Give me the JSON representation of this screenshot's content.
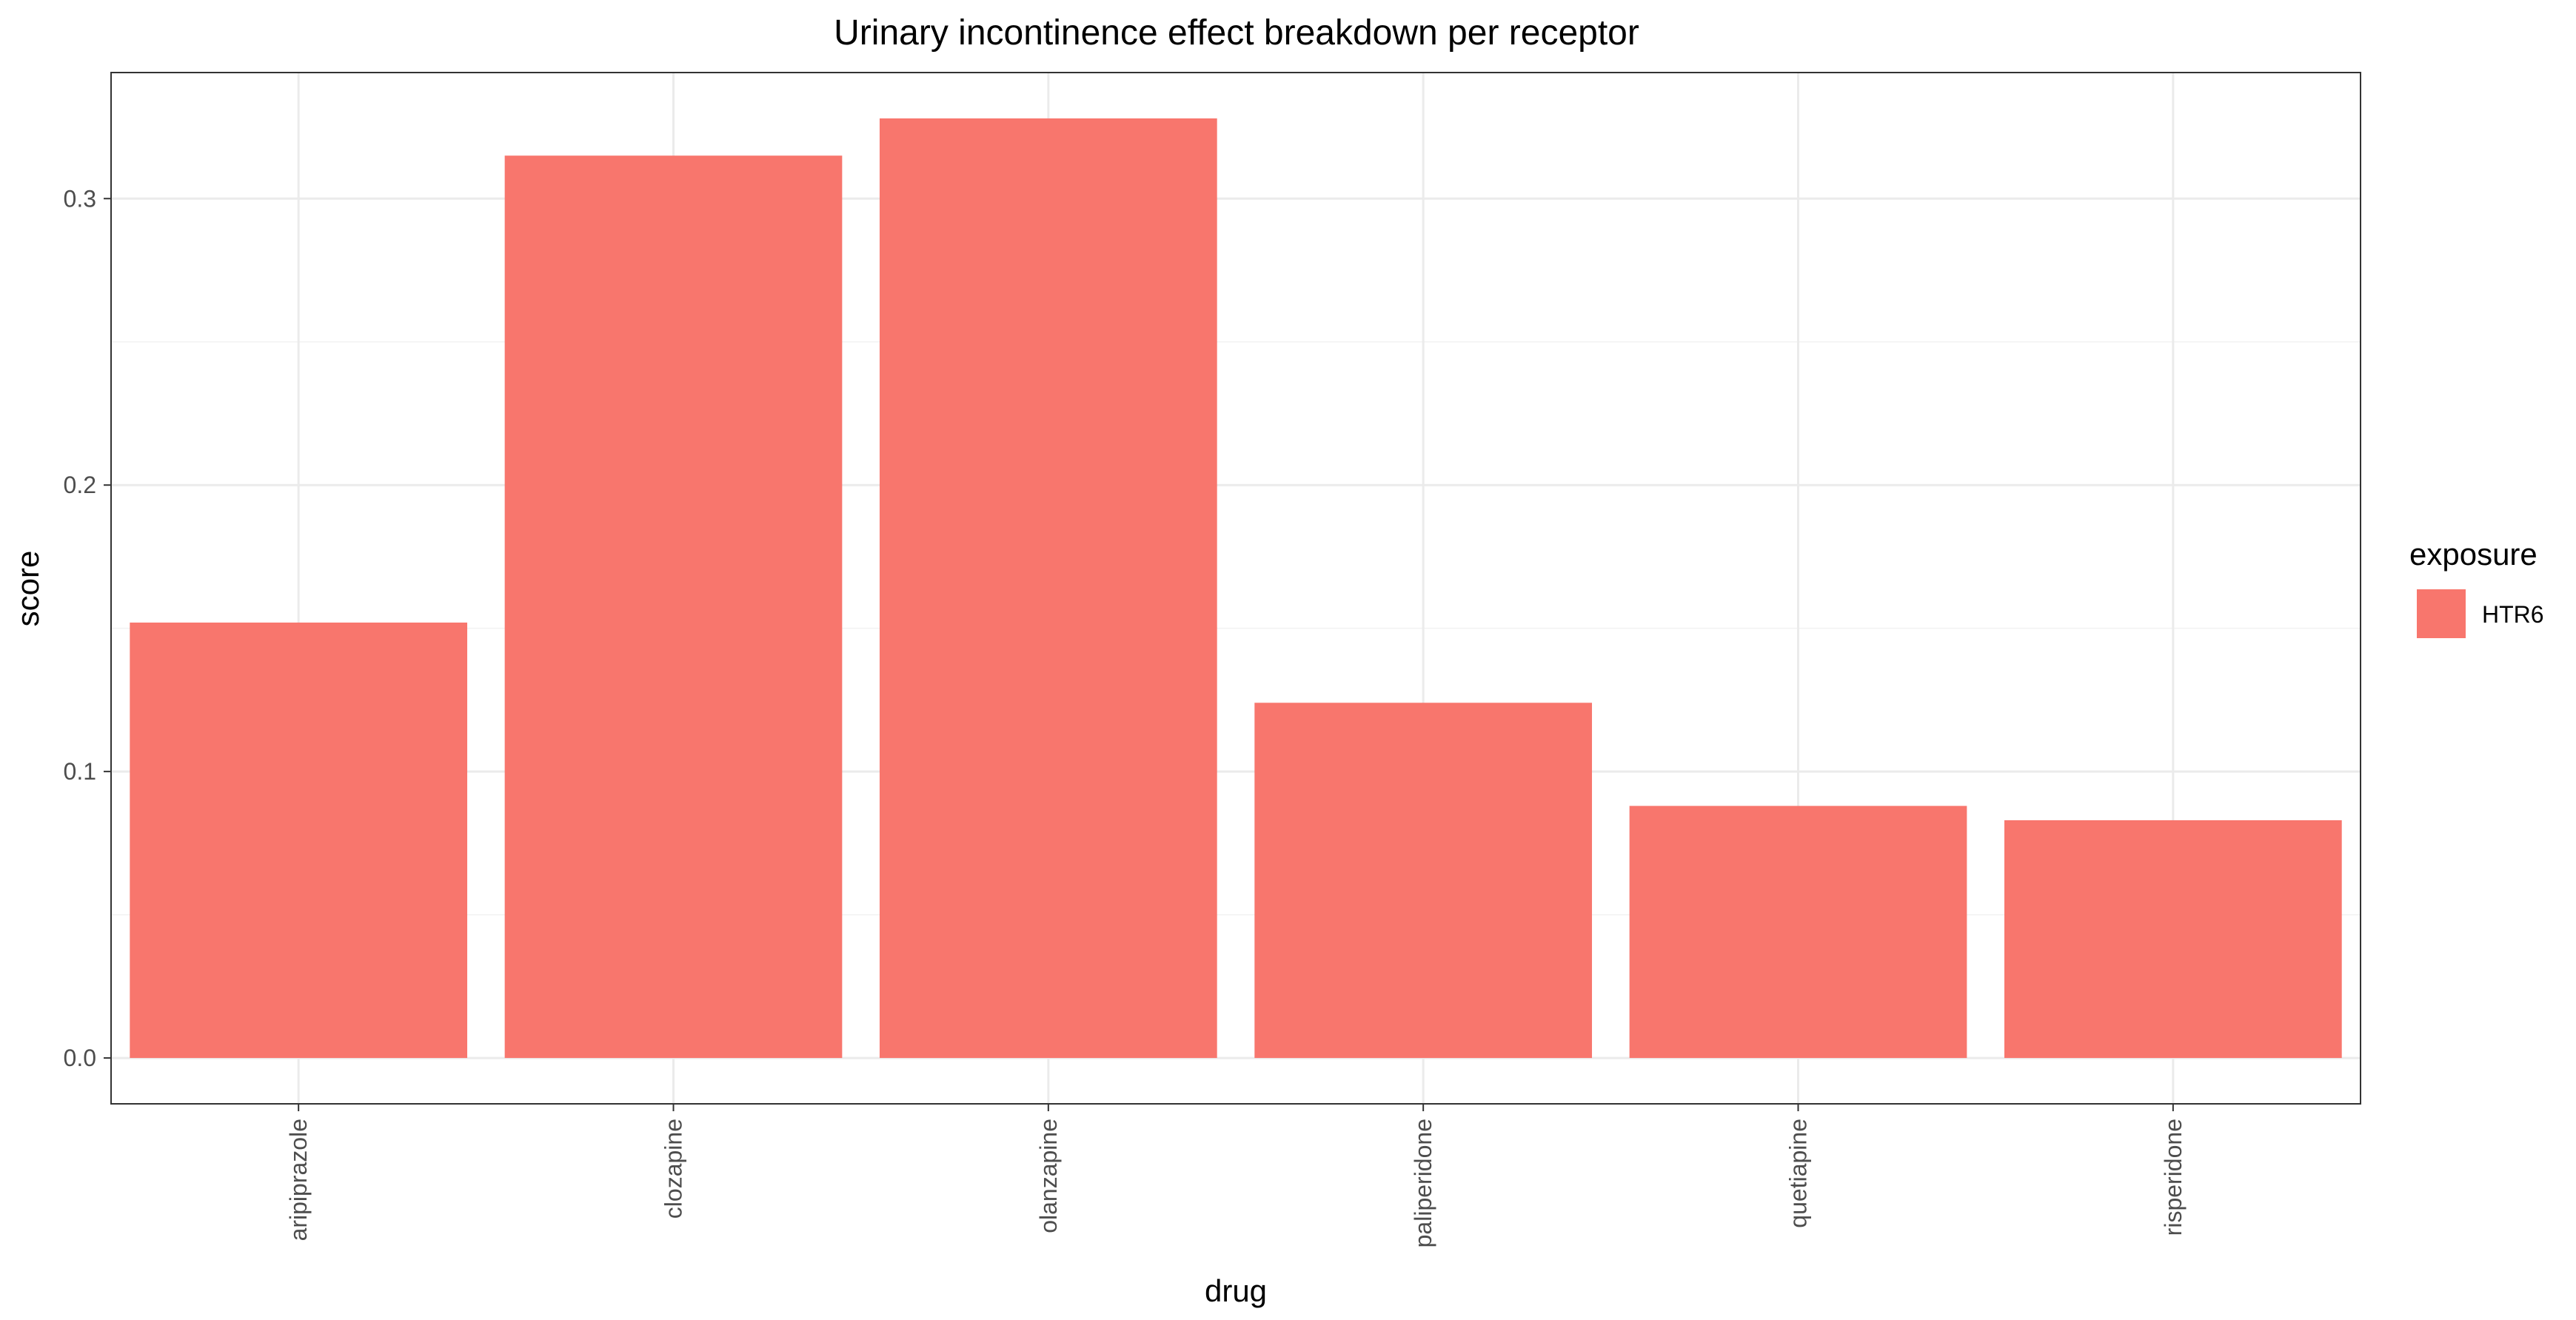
{
  "chart_data": {
    "type": "bar",
    "title": "Urinary incontinence effect breakdown per receptor",
    "xlabel": "drug",
    "ylabel": "score",
    "categories": [
      "aripiprazole",
      "clozapine",
      "olanzapine",
      "paliperidone",
      "quetiapine",
      "risperidone"
    ],
    "series": [
      {
        "name": "HTR6",
        "color": "#f8766d",
        "values": [
          0.152,
          0.315,
          0.328,
          0.124,
          0.088,
          0.083
        ]
      }
    ],
    "ylim": [
      -0.016,
      0.344
    ],
    "yticks": [
      0.0,
      0.1,
      0.2,
      0.3
    ],
    "ytick_labels": [
      "0.0",
      "0.1",
      "0.2",
      "0.3"
    ],
    "grid": true,
    "legend": {
      "title": "exposure",
      "position": "right"
    }
  }
}
